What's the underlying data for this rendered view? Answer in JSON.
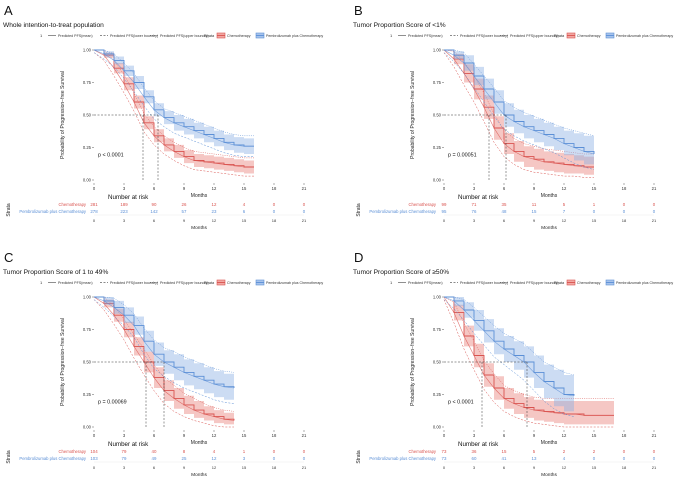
{
  "chart_data": [
    {
      "type": "line",
      "letter": "A",
      "title": "Whole intention-to-treat population",
      "ylabel": "Probability of Progression−free Survival",
      "xlabel": "Months",
      "xlim": [
        0,
        21
      ],
      "ylim": [
        0,
        1
      ],
      "x_ticks": [
        "0",
        "3",
        "6",
        "9",
        "12",
        "15",
        "18",
        "21"
      ],
      "y_ticks": [
        "0.00",
        "0.25",
        "0.50",
        "0.75",
        "1.00"
      ],
      "pvalue": "p < 0.0001",
      "legend": {
        "line_key": "1",
        "line_items": [
          "Predicted PFS(mean)",
          "Predicted PFS(lower boundry)",
          "Predicted PFS(upper boundry)"
        ],
        "strata_title": "Strata",
        "strata_items": [
          "Chemotherapy",
          "Pembrolizumab plus Chemotherapy"
        ]
      },
      "colors": {
        "chemo": "#d9534f",
        "pembro": "#5b8fd6"
      },
      "median": {
        "chemo": 4.9,
        "pembro": 6.4
      },
      "series": [
        {
          "name": "Chemotherapy",
          "x": [
            0,
            1,
            2,
            3,
            4,
            5,
            6,
            7,
            8,
            9,
            10,
            11,
            12,
            13,
            14,
            15,
            16
          ],
          "values": [
            1.0,
            0.96,
            0.86,
            0.74,
            0.6,
            0.44,
            0.34,
            0.27,
            0.22,
            0.18,
            0.15,
            0.14,
            0.13,
            0.12,
            0.11,
            0.1,
            0.1
          ],
          "lower": [
            1.0,
            0.94,
            0.82,
            0.69,
            0.55,
            0.39,
            0.29,
            0.22,
            0.17,
            0.13,
            0.1,
            0.09,
            0.08,
            0.07,
            0.06,
            0.05,
            0.05
          ],
          "upper": [
            1.0,
            0.98,
            0.9,
            0.79,
            0.65,
            0.49,
            0.39,
            0.32,
            0.27,
            0.23,
            0.2,
            0.19,
            0.18,
            0.17,
            0.16,
            0.15,
            0.15
          ]
        },
        {
          "name": "Pembrolizumab plus Chemotherapy",
          "x": [
            0,
            1,
            2,
            3,
            4,
            5,
            6,
            7,
            8,
            9,
            10,
            11,
            12,
            13,
            14,
            15,
            16
          ],
          "values": [
            1.0,
            0.97,
            0.92,
            0.84,
            0.75,
            0.64,
            0.54,
            0.48,
            0.44,
            0.41,
            0.38,
            0.35,
            0.32,
            0.29,
            0.27,
            0.26,
            0.26
          ],
          "lower": [
            1.0,
            0.95,
            0.89,
            0.8,
            0.7,
            0.59,
            0.49,
            0.43,
            0.38,
            0.35,
            0.32,
            0.29,
            0.26,
            0.23,
            0.21,
            0.2,
            0.2
          ],
          "upper": [
            1.0,
            0.99,
            0.95,
            0.88,
            0.8,
            0.69,
            0.59,
            0.53,
            0.5,
            0.47,
            0.44,
            0.41,
            0.38,
            0.35,
            0.33,
            0.32,
            0.32
          ]
        }
      ],
      "risk_table": {
        "title": "Number at risk",
        "side_label": "Strata",
        "xlabel": "Months",
        "rows": [
          {
            "name": "Chemotherapy",
            "values": [
              "281",
              "189",
              "90",
              "26",
              "12",
              "4",
              "0",
              "0"
            ]
          },
          {
            "name": "Pembrolizumab plus Chemotherapy",
            "values": [
              "278",
              "223",
              "142",
              "57",
              "23",
              "6",
              "0",
              "0"
            ]
          }
        ]
      }
    },
    {
      "type": "line",
      "letter": "B",
      "title": "Tumor Proportion Score of <1%",
      "ylabel": "Probability of Progression−free Survival",
      "xlabel": "Months",
      "xlim": [
        0,
        21
      ],
      "ylim": [
        0,
        1
      ],
      "x_ticks": [
        "0",
        "3",
        "6",
        "9",
        "12",
        "15",
        "18",
        "21"
      ],
      "y_ticks": [
        "0.00",
        "0.25",
        "0.50",
        "0.75",
        "1.00"
      ],
      "pvalue": "p = 0.00051",
      "legend": {
        "line_key": "1",
        "line_items": [
          "Predicted PFS(mean)",
          "Predicted PFS(lower boundry)",
          "Predicted PFS(upper boundry)"
        ],
        "strata_title": "Strata",
        "strata_items": [
          "Chemotherapy",
          "Pembrolizumab plus Chemotherapy"
        ]
      },
      "colors": {
        "chemo": "#d9534f",
        "pembro": "#5b8fd6"
      },
      "median": {
        "chemo": 4.5,
        "pembro": 6.2
      },
      "series": [
        {
          "name": "Chemotherapy",
          "x": [
            0,
            1,
            2,
            3,
            4,
            5,
            6,
            7,
            8,
            9,
            10,
            11,
            12,
            13,
            14,
            15
          ],
          "values": [
            1.0,
            0.93,
            0.82,
            0.7,
            0.56,
            0.4,
            0.28,
            0.22,
            0.18,
            0.16,
            0.14,
            0.13,
            0.12,
            0.11,
            0.1,
            0.1
          ],
          "lower": [
            1.0,
            0.89,
            0.75,
            0.62,
            0.47,
            0.31,
            0.2,
            0.14,
            0.1,
            0.08,
            0.07,
            0.06,
            0.05,
            0.05,
            0.04,
            0.04
          ],
          "upper": [
            1.0,
            0.97,
            0.89,
            0.78,
            0.65,
            0.49,
            0.36,
            0.3,
            0.26,
            0.24,
            0.22,
            0.21,
            0.2,
            0.19,
            0.18,
            0.18
          ]
        },
        {
          "name": "Pembrolizumab plus Chemotherapy",
          "x": [
            0,
            1,
            2,
            3,
            4,
            5,
            6,
            7,
            8,
            9,
            10,
            11,
            12,
            13,
            14,
            15
          ],
          "values": [
            1.0,
            0.96,
            0.9,
            0.8,
            0.7,
            0.6,
            0.5,
            0.45,
            0.41,
            0.38,
            0.35,
            0.32,
            0.28,
            0.25,
            0.22,
            0.2
          ],
          "lower": [
            1.0,
            0.93,
            0.84,
            0.73,
            0.62,
            0.51,
            0.41,
            0.36,
            0.32,
            0.29,
            0.26,
            0.23,
            0.19,
            0.15,
            0.12,
            0.1
          ],
          "upper": [
            1.0,
            0.99,
            0.96,
            0.87,
            0.78,
            0.69,
            0.59,
            0.54,
            0.5,
            0.47,
            0.44,
            0.41,
            0.38,
            0.36,
            0.34,
            0.32
          ]
        }
      ],
      "risk_table": {
        "title": "Number at risk",
        "side_label": "Strata",
        "xlabel": "Months",
        "rows": [
          {
            "name": "Chemotherapy",
            "values": [
              "99",
              "71",
              "35",
              "11",
              "5",
              "1",
              "0",
              "0"
            ]
          },
          {
            "name": "Pembrolizumab plus Chemotherapy",
            "values": [
              "95",
              "76",
              "48",
              "15",
              "7",
              "0",
              "0",
              "0"
            ]
          }
        ]
      }
    },
    {
      "type": "line",
      "letter": "C",
      "title": "Tumor Proportion Score of 1 to 49%",
      "ylabel": "Probability of Progression−free Survival",
      "xlabel": "Months",
      "xlim": [
        0,
        21
      ],
      "ylim": [
        0,
        1
      ],
      "x_ticks": [
        "0",
        "3",
        "6",
        "9",
        "12",
        "15",
        "18",
        "21"
      ],
      "y_ticks": [
        "0.00",
        "0.25",
        "0.50",
        "0.75",
        "1.00"
      ],
      "pvalue": "p = 0.00069",
      "legend": {
        "line_key": "1",
        "line_items": [
          "Predicted PFS(mean)",
          "Predicted PFS(lower boundry)",
          "Predicted PFS(upper boundry)"
        ],
        "strata_title": "Strata",
        "strata_items": [
          "Chemotherapy",
          "Pembrolizumab plus Chemotherapy"
        ]
      },
      "colors": {
        "chemo": "#d9534f",
        "pembro": "#5b8fd6"
      },
      "median": {
        "chemo": 5.2,
        "pembro": 7.0
      },
      "series": [
        {
          "name": "Chemotherapy",
          "x": [
            0,
            1,
            2,
            3,
            4,
            5,
            6,
            7,
            8,
            9,
            10,
            11,
            12,
            13,
            14
          ],
          "values": [
            1.0,
            0.95,
            0.86,
            0.75,
            0.62,
            0.5,
            0.38,
            0.28,
            0.22,
            0.17,
            0.13,
            0.1,
            0.08,
            0.06,
            0.05
          ],
          "lower": [
            1.0,
            0.92,
            0.81,
            0.69,
            0.55,
            0.42,
            0.3,
            0.2,
            0.14,
            0.1,
            0.07,
            0.05,
            0.03,
            0.02,
            0.01
          ],
          "upper": [
            1.0,
            0.98,
            0.91,
            0.81,
            0.69,
            0.58,
            0.46,
            0.36,
            0.3,
            0.24,
            0.2,
            0.16,
            0.13,
            0.11,
            0.1
          ]
        },
        {
          "name": "Pembrolizumab plus Chemotherapy",
          "x": [
            0,
            1,
            2,
            3,
            4,
            5,
            6,
            7,
            8,
            9,
            10,
            11,
            12,
            13,
            14
          ],
          "values": [
            1.0,
            0.97,
            0.92,
            0.86,
            0.78,
            0.66,
            0.56,
            0.5,
            0.46,
            0.42,
            0.39,
            0.36,
            0.33,
            0.31,
            0.3
          ],
          "lower": [
            1.0,
            0.94,
            0.87,
            0.8,
            0.71,
            0.58,
            0.47,
            0.41,
            0.36,
            0.32,
            0.29,
            0.26,
            0.23,
            0.21,
            0.2
          ],
          "upper": [
            1.0,
            1.0,
            0.97,
            0.92,
            0.85,
            0.74,
            0.65,
            0.59,
            0.56,
            0.52,
            0.49,
            0.46,
            0.43,
            0.41,
            0.4
          ]
        }
      ],
      "risk_table": {
        "title": "Number at risk",
        "side_label": "Strata",
        "xlabel": "Months",
        "rows": [
          {
            "name": "Chemotherapy",
            "values": [
              "104",
              "79",
              "40",
              "8",
              "4",
              "1",
              "0",
              "0"
            ]
          },
          {
            "name": "Pembrolizumab plus Chemotherapy",
            "values": [
              "103",
              "79",
              "49",
              "25",
              "12",
              "3",
              "0",
              "0"
            ]
          }
        ]
      }
    },
    {
      "type": "line",
      "letter": "D",
      "title": "Tumor Proportion Score of ≥50%",
      "ylabel": "Probability of Progression−free Survival",
      "xlabel": "Months",
      "xlim": [
        0,
        21
      ],
      "ylim": [
        0,
        1
      ],
      "x_ticks": [
        "0",
        "3",
        "6",
        "9",
        "12",
        "15",
        "18",
        "21"
      ],
      "y_ticks": [
        "0.00",
        "0.25",
        "0.50",
        "0.75",
        "1.00"
      ],
      "pvalue": "p < 0.0001",
      "legend": {
        "line_key": "1",
        "line_items": [
          "Predicted PFS(mean)",
          "Predicted PFS(lower boundry)",
          "Predicted PFS(upper boundry)"
        ],
        "strata_title": "Strata",
        "strata_items": [
          "Chemotherapy",
          "Pembrolizumab plus Chemotherapy"
        ]
      },
      "colors": {
        "chemo": "#d9534f",
        "pembro": "#5b8fd6"
      },
      "median": {
        "chemo": 3.8,
        "pembro": 8.3
      },
      "series": [
        {
          "name": "Chemotherapy",
          "x": [
            0,
            1,
            2,
            3,
            4,
            5,
            6,
            7,
            8,
            9,
            10,
            11,
            12,
            13,
            14,
            15,
            16,
            17
          ],
          "values": [
            1.0,
            0.88,
            0.7,
            0.55,
            0.4,
            0.3,
            0.22,
            0.18,
            0.15,
            0.13,
            0.12,
            0.11,
            0.1,
            0.1,
            0.09,
            0.09,
            0.09,
            0.09
          ],
          "lower": [
            1.0,
            0.82,
            0.62,
            0.46,
            0.31,
            0.21,
            0.14,
            0.1,
            0.07,
            0.05,
            0.04,
            0.03,
            0.02,
            0.02,
            0.02,
            0.02,
            0.02,
            0.02
          ],
          "upper": [
            1.0,
            0.94,
            0.78,
            0.64,
            0.49,
            0.39,
            0.3,
            0.26,
            0.23,
            0.21,
            0.2,
            0.2,
            0.2,
            0.2,
            0.2,
            0.2,
            0.2,
            0.2
          ]
        },
        {
          "name": "Pembrolizumab plus Chemotherapy",
          "x": [
            0,
            1,
            2,
            3,
            4,
            5,
            6,
            7,
            8,
            9,
            10,
            11,
            12,
            13
          ],
          "values": [
            1.0,
            0.97,
            0.9,
            0.82,
            0.74,
            0.66,
            0.6,
            0.55,
            0.5,
            0.42,
            0.35,
            0.3,
            0.25,
            0.24
          ],
          "lower": [
            1.0,
            0.93,
            0.84,
            0.74,
            0.65,
            0.56,
            0.5,
            0.44,
            0.38,
            0.3,
            0.22,
            0.16,
            0.12,
            0.1
          ],
          "upper": [
            1.0,
            1.0,
            0.96,
            0.9,
            0.83,
            0.76,
            0.7,
            0.66,
            0.62,
            0.55,
            0.48,
            0.44,
            0.4,
            0.38
          ]
        }
      ],
      "risk_table": {
        "title": "Number at risk",
        "side_label": "Strata",
        "xlabel": "Months",
        "rows": [
          {
            "name": "Chemotherapy",
            "values": [
              "73",
              "36",
              "15",
              "5",
              "2",
              "2",
              "0",
              "0"
            ]
          },
          {
            "name": "Pembrolizumab plus Chemotherapy",
            "values": [
              "73",
              "60",
              "41",
              "13",
              "4",
              "0",
              "0",
              "0"
            ]
          }
        ]
      }
    }
  ]
}
